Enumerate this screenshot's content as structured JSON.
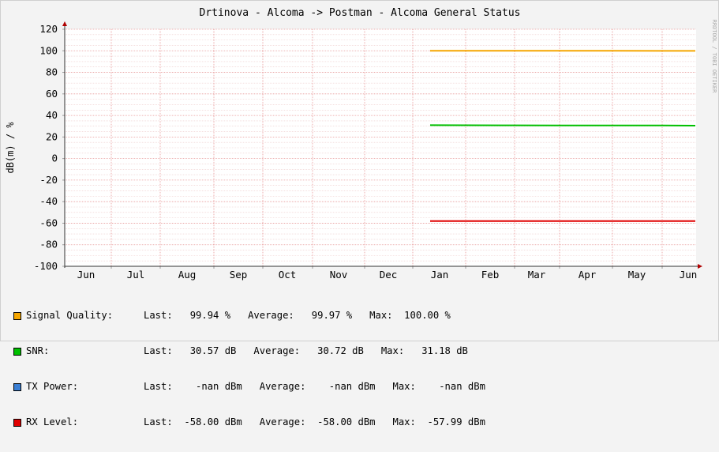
{
  "chart_data": {
    "type": "line",
    "title": "Drtinova - Alcoma -> Postman - Alcoma General Status",
    "ylabel": "dB(m) / %",
    "watermark": "RRDTOOL / TOBI OETIKER",
    "ylim": [
      -100,
      120
    ],
    "yticks": [
      "120",
      "100",
      "80",
      "60",
      "40",
      "20",
      "0",
      "-20",
      "-40",
      "-60",
      "-80",
      "-100"
    ],
    "ytick_values": [
      120,
      100,
      80,
      60,
      40,
      20,
      0,
      -20,
      -40,
      -60,
      -80,
      -100
    ],
    "categories": [
      "Jun",
      "Jul",
      "Aug",
      "Sep",
      "Oct",
      "Nov",
      "Dec",
      "Jan",
      "Feb",
      "Mar",
      "Apr",
      "May",
      "Jun"
    ],
    "series": [
      {
        "name": "Signal Quality:",
        "color": "#f5a600",
        "x": [
          "Jan",
          "Feb",
          "Mar",
          "Apr",
          "May",
          "Jun"
        ],
        "values": [
          99.97,
          99.97,
          99.97,
          99.97,
          99.9,
          99.94
        ]
      },
      {
        "name": "SNR:",
        "color": "#00c000",
        "x": [
          "Jan",
          "Feb",
          "Mar",
          "Apr",
          "May",
          "Jun"
        ],
        "values": [
          31.0,
          30.8,
          30.7,
          30.7,
          30.7,
          30.57
        ]
      },
      {
        "name": "TX Power:",
        "color": "#3b7fd4",
        "x": [],
        "values": []
      },
      {
        "name": "RX Level:",
        "color": "#e00000",
        "x": [
          "Jan",
          "Feb",
          "Mar",
          "Apr",
          "May",
          "Jun"
        ],
        "values": [
          -58.0,
          -58.0,
          -58.0,
          -58.0,
          -58.0,
          -58.0
        ]
      }
    ],
    "grid": true,
    "legend": "bottom-left"
  },
  "legend": [
    {
      "name": "Signal Quality:",
      "color": "#f5a600",
      "stats": "Last:   99.94 %   Average:   99.97 %   Max:  100.00 %"
    },
    {
      "name": "SNR:",
      "color": "#00c000",
      "stats": "Last:   30.57 dB   Average:   30.72 dB   Max:   31.18 dB"
    },
    {
      "name": "TX Power:",
      "color": "#3b7fd4",
      "stats": "Last:    -nan dBm   Average:    -nan dBm   Max:    -nan dBm"
    },
    {
      "name": "RX Level:",
      "color": "#e00000",
      "stats": "Last:  -58.00 dBm   Average:  -58.00 dBm   Max:  -57.99 dBm"
    }
  ]
}
